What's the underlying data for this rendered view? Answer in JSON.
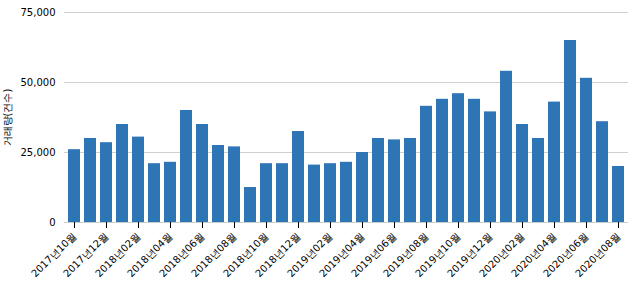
{
  "chart_data": {
    "type": "bar",
    "categories": [
      "2017년10월",
      null,
      "2017년12월",
      null,
      "2018년02월",
      null,
      "2018년04월",
      null,
      "2018년06월",
      null,
      "2018년08월",
      null,
      "2018년10월",
      null,
      "2018년12월",
      null,
      "2019년02월",
      null,
      "2019년04월",
      null,
      "2019년06월",
      null,
      "2019년08월",
      null,
      "2019년10월",
      null,
      "2019년12월",
      null,
      "2020년02월",
      null,
      "2020년04월",
      null,
      "2020년06월",
      null,
      "2020년08월"
    ],
    "values": [
      26000,
      30000,
      28500,
      35000,
      30500,
      21000,
      21500,
      40000,
      35000,
      27500,
      27000,
      12500,
      21000,
      21000,
      32500,
      20500,
      21000,
      21500,
      25000,
      30000,
      29500,
      30000,
      41500,
      44000,
      46000,
      44000,
      39500,
      54000,
      35000,
      30000,
      43000,
      65000,
      51500,
      36000,
      20000
    ],
    "color": "#2e75b6",
    "ylabel": "거래량(건수)",
    "ylim": [
      0,
      75000
    ],
    "yticks": [
      0,
      {
        "value": 25000,
        "label": "25,000"
      },
      {
        "value": 50000,
        "label": "50,000"
      },
      {
        "value": 75000,
        "label": "75,000"
      }
    ],
    "grid": true
  }
}
